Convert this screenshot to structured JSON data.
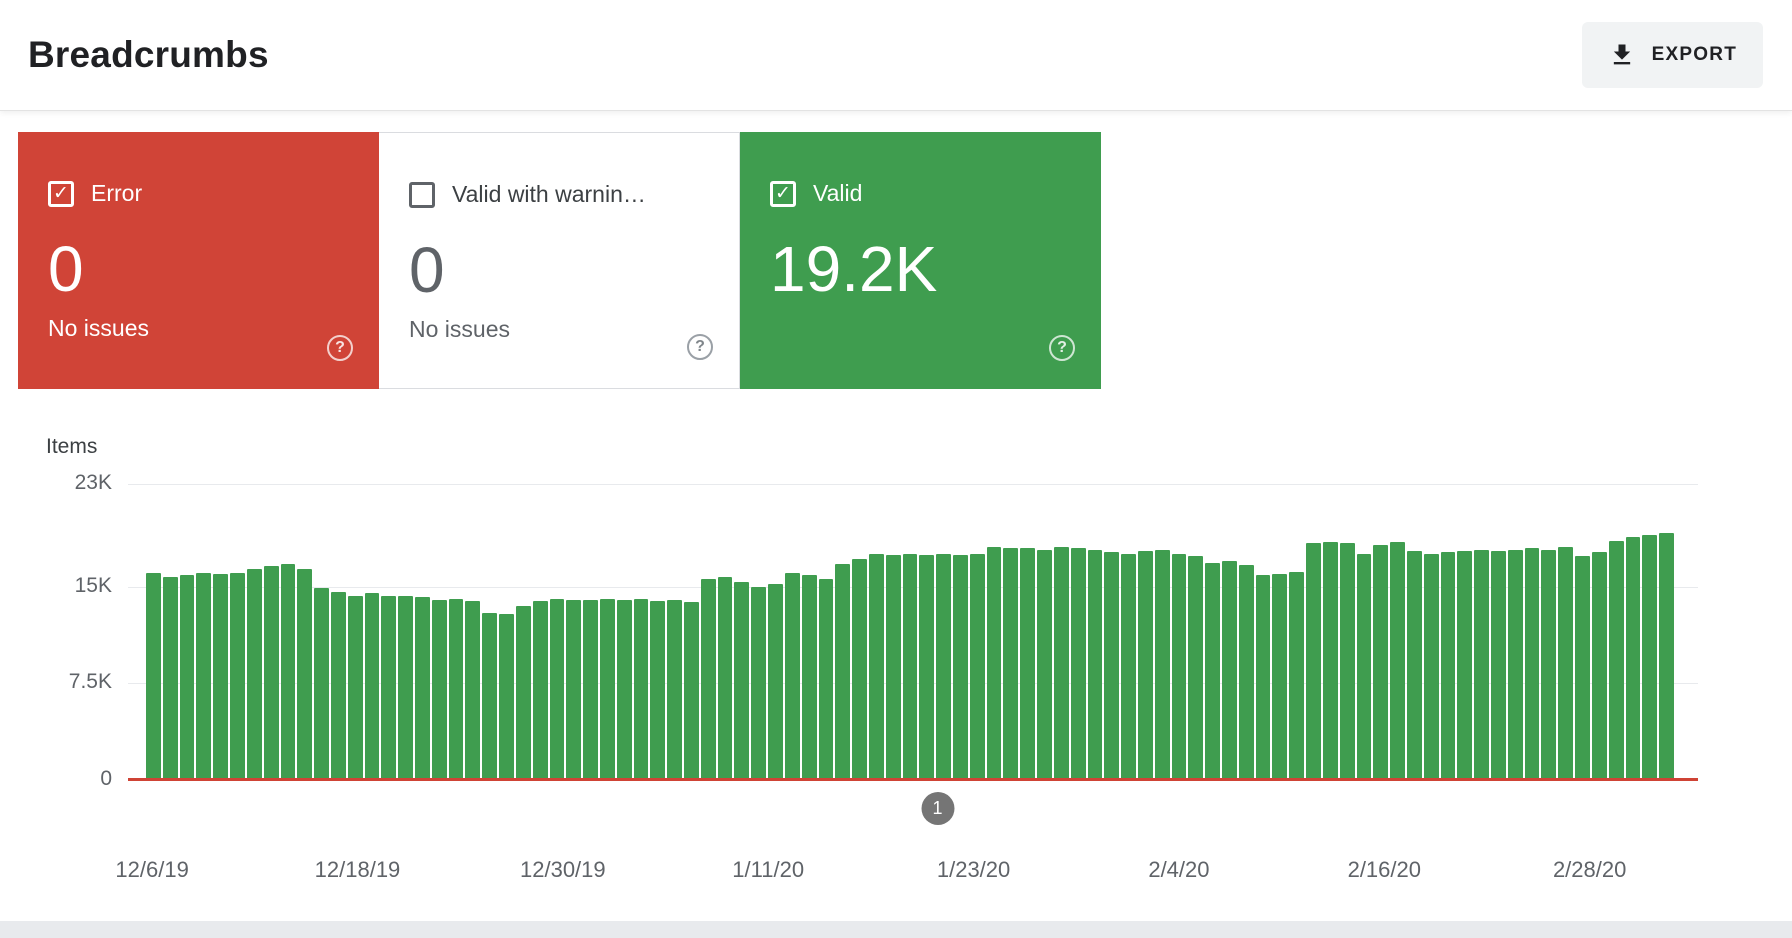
{
  "page": {
    "title": "Breadcrumbs"
  },
  "toolbar": {
    "export_label": "EXPORT"
  },
  "cards": [
    {
      "id": "error",
      "label": "Error",
      "value": "0",
      "sub": "No issues",
      "checked": true,
      "bg": "#d04437"
    },
    {
      "id": "valid-with-warnings",
      "label": "Valid with warnin…",
      "value": "0",
      "sub": "No issues",
      "checked": false,
      "bg": "#ffffff"
    },
    {
      "id": "valid",
      "label": "Valid",
      "value": "19.2K",
      "checked": true,
      "bg": "#3f9d4f"
    }
  ],
  "colors": {
    "error_card": "#d04437",
    "valid_card": "#3f9d4f",
    "bar": "#3f9d4f",
    "error_line": "#cf4335",
    "grid_line": "#e8eaed",
    "marker": "#757575",
    "secondary_text": "#5f6368"
  },
  "chart_data": {
    "type": "bar",
    "title": "Items",
    "xlabel": "",
    "ylabel": "Items",
    "ylim": [
      0,
      23000
    ],
    "grid": true,
    "yticks": [
      {
        "label": "23K",
        "value": 23000
      },
      {
        "label": "15K",
        "value": 15000
      },
      {
        "label": "7.5K",
        "value": 7500
      },
      {
        "label": "0",
        "value": 0
      }
    ],
    "x_tick_labels": [
      "12/6/19",
      "12/18/19",
      "12/30/19",
      "1/11/20",
      "1/23/20",
      "2/4/20",
      "2/16/20",
      "2/28/20"
    ],
    "x_start_date": "12/6/19",
    "x_interval_days": 1,
    "series": [
      {
        "name": "Valid",
        "type": "bar",
        "color": "#3f9d4f",
        "daily_values": [
          16100,
          15800,
          15900,
          16100,
          16000,
          16100,
          16400,
          16600,
          16800,
          16400,
          14900,
          14600,
          14300,
          14500,
          14300,
          14300,
          14200,
          14000,
          14100,
          13900,
          13000,
          12900,
          13500,
          13900,
          14100,
          14000,
          14000,
          14100,
          14000,
          14100,
          13900,
          14000,
          13800,
          15600,
          15800,
          15400,
          15000,
          15200,
          16100,
          15900,
          15600,
          16800,
          17200,
          17600,
          17500,
          17600,
          17500,
          17600,
          17500,
          17600,
          18100,
          18000,
          18000,
          17900,
          18100,
          18000,
          17900,
          17700,
          17600,
          17800,
          17900,
          17600,
          17400,
          16900,
          17000,
          16700,
          15900,
          16000,
          16200,
          18400,
          18500,
          18400,
          17600,
          18300,
          18500,
          17800,
          17600,
          17700,
          17800,
          17900,
          17800,
          17900,
          18000,
          17900,
          18100,
          17400,
          17700,
          18600,
          18900,
          19000,
          19200
        ]
      },
      {
        "name": "Error",
        "type": "line",
        "color": "#cf4335",
        "constant_value": 0
      }
    ],
    "annotation": {
      "label": "1"
    },
    "legend_position": "none"
  }
}
